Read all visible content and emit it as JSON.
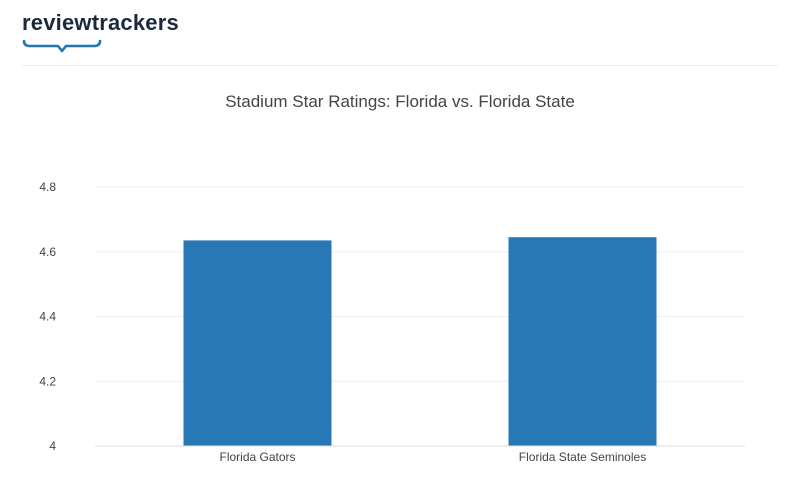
{
  "brand": {
    "name": "reviewtrackers",
    "color": "#1b2a3b",
    "accent": "#1f77b4"
  },
  "chart_data": {
    "type": "bar",
    "title": "Stadium Star Ratings: Florida vs. Florida State",
    "categories": [
      "Florida Gators",
      "Florida State Seminoles"
    ],
    "values": [
      4.635,
      4.645
    ],
    "ylim": [
      4.0,
      4.8
    ],
    "yticks": [
      4.0,
      4.2,
      4.4,
      4.6,
      4.8
    ],
    "ytick_labels": [
      "4",
      "4.2",
      "4.4",
      "4.6",
      "4.8"
    ],
    "xlabel": "",
    "ylabel": "",
    "grid": true,
    "bar_color": "#2878b5",
    "grid_color": "#eeeeee"
  }
}
